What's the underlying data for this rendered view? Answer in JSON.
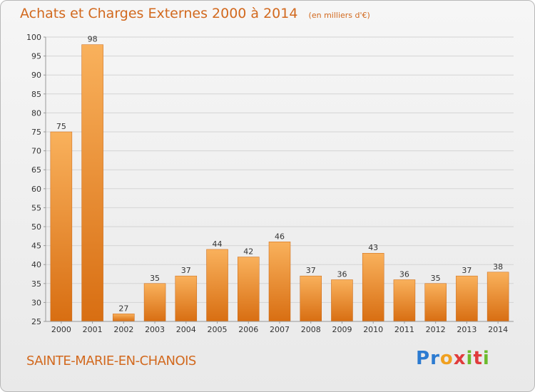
{
  "chart_data": {
    "type": "bar",
    "title": "Achats et Charges Externes 2000 à 2014",
    "subtitle": "(en milliers d'€)",
    "categories": [
      "2000",
      "2001",
      "2002",
      "2003",
      "2004",
      "2005",
      "2006",
      "2007",
      "2008",
      "2009",
      "2010",
      "2011",
      "2012",
      "2013",
      "2014"
    ],
    "values": [
      75,
      98,
      27,
      35,
      37,
      44,
      42,
      46,
      37,
      36,
      43,
      36,
      35,
      37,
      38
    ],
    "ylim": [
      25,
      100
    ],
    "yticks": [
      25,
      30,
      35,
      40,
      45,
      50,
      55,
      60,
      65,
      70,
      75,
      80,
      85,
      90,
      95,
      100
    ],
    "grid": true,
    "bar_color": "#f08a2a"
  },
  "footer": {
    "place_name": "SAINTE-MARIE-EN-CHANOIS",
    "logo_text": "Proxiti"
  }
}
